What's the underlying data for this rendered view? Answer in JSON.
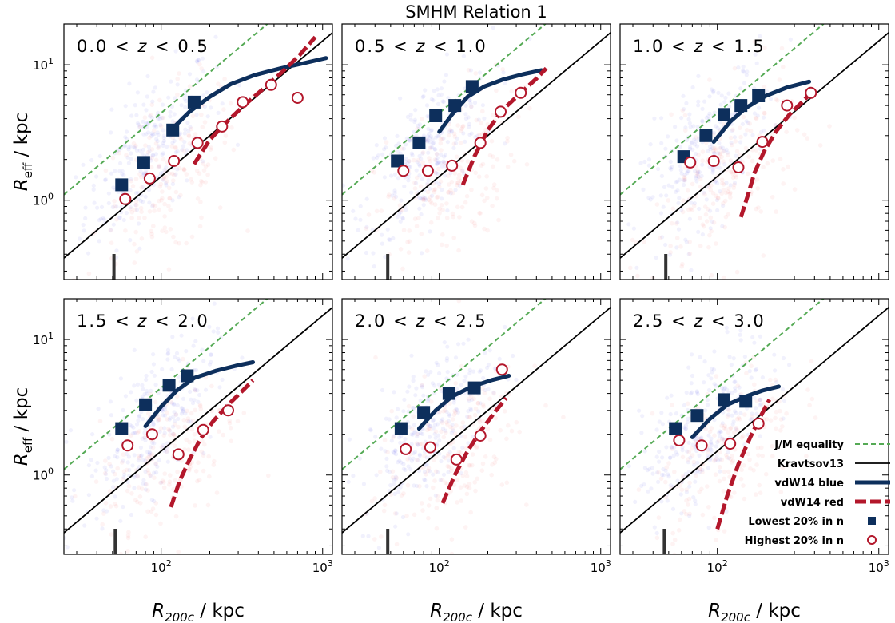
{
  "title": "SMHM Relation 1",
  "colors": {
    "jm_equality": "#55aa55",
    "kravtsov": "#000000",
    "vdw_blue": "#0d2f5c",
    "vdw_red": "#b3172b",
    "low_n": "#0d2f5c",
    "high_n": "#b3172b",
    "scatter_blue": "#3333dd",
    "scatter_red": "#ee5555",
    "tick_marker": "#333333"
  },
  "axes": {
    "xlabel_main": "R",
    "xlabel_sub": "200c",
    "xlabel_unit": " / kpc",
    "ylabel_main": "R",
    "ylabel_sub": "eff",
    "ylabel_unit": " / kpc",
    "xlim": [
      25,
      1150
    ],
    "ylim": [
      0.26,
      20
    ],
    "xscale": "log",
    "yscale": "log",
    "x_ticks": [
      {
        "value": 100,
        "base": "10",
        "exp": "2"
      },
      {
        "value": 1000,
        "base": "10",
        "exp": "3"
      }
    ],
    "y_ticks": [
      {
        "value": 1,
        "base": "10",
        "exp": "0"
      },
      {
        "value": 10,
        "base": "10",
        "exp": "1"
      }
    ]
  },
  "legend": {
    "placement": "lower-right of last panel",
    "entries": [
      {
        "label": "J/M equality",
        "key": "jm"
      },
      {
        "label": "Kravtsov13",
        "key": "krav"
      },
      {
        "label": "vdW14 blue",
        "key": "blue"
      },
      {
        "label": "vdW14 red",
        "key": "red"
      },
      {
        "label": "Lowest 20% in n",
        "key": "low"
      },
      {
        "label": "Highest 20% in n",
        "key": "high"
      }
    ]
  },
  "chart_data": [
    {
      "type": "scatter",
      "panel_label": "0.0 < z < 0.5",
      "lo": "0.0",
      "hi": "0.5",
      "jm_equality": {
        "x": [
          25,
          600
        ],
        "y": [
          1.1,
          26.4
        ]
      },
      "kravtsov13": {
        "x": [
          25,
          1150
        ],
        "y": [
          0.375,
          17.25
        ]
      },
      "vdw14_blue": {
        "x": [
          115,
          150,
          200,
          270,
          380,
          550,
          800,
          1050
        ],
        "y": [
          3.3,
          4.5,
          5.8,
          7.2,
          8.4,
          9.4,
          10.4,
          11.2
        ]
      },
      "vdw14_red": {
        "x": [
          160,
          200,
          250,
          320,
          420,
          560,
          720,
          900
        ],
        "y": [
          1.85,
          2.8,
          3.7,
          4.9,
          6.5,
          8.8,
          11.8,
          16
        ]
      },
      "lowest_20_n": {
        "x": [
          57,
          78,
          118,
          160
        ],
        "y": [
          1.3,
          1.9,
          3.3,
          5.3
        ]
      },
      "highest_20_n": {
        "x": [
          60,
          85,
          120,
          168,
          238,
          320,
          480,
          700
        ],
        "y": [
          1.02,
          1.45,
          1.95,
          2.65,
          3.5,
          5.3,
          7.1,
          5.7
        ]
      },
      "resolution_marker_x": 51
    },
    {
      "type": "scatter",
      "panel_label": "0.5 < z < 1.0",
      "lo": "0.5",
      "hi": "1.0",
      "jm_equality": {
        "x": [
          25,
          600
        ],
        "y": [
          1.1,
          26.4
        ]
      },
      "kravtsov13": {
        "x": [
          25,
          1150
        ],
        "y": [
          0.375,
          17.25
        ]
      },
      "vdw14_blue": {
        "x": [
          100,
          120,
          150,
          190,
          250,
          330,
          430
        ],
        "y": [
          3.2,
          4.3,
          5.8,
          6.9,
          7.8,
          8.5,
          9.1
        ]
      },
      "vdw14_red": {
        "x": [
          140,
          165,
          200,
          250,
          320,
          400,
          460
        ],
        "y": [
          1.3,
          2.1,
          3.3,
          4.7,
          6.2,
          7.9,
          9.4
        ]
      },
      "lowest_20_n": {
        "x": [
          55,
          75,
          95,
          125,
          160
        ],
        "y": [
          1.95,
          2.65,
          4.2,
          5.0,
          6.9
        ]
      },
      "highest_20_n": {
        "x": [
          60,
          85,
          120,
          180,
          240,
          320
        ],
        "y": [
          1.65,
          1.65,
          1.8,
          2.65,
          4.5,
          6.2
        ]
      },
      "resolution_marker_x": 48
    },
    {
      "type": "scatter",
      "panel_label": "1.0 < z < 1.5",
      "lo": "1.0",
      "hi": "1.5",
      "jm_equality": {
        "x": [
          25,
          600
        ],
        "y": [
          1.1,
          26.4
        ]
      },
      "kravtsov13": {
        "x": [
          25,
          1150
        ],
        "y": [
          0.375,
          17.25
        ]
      },
      "vdw14_blue": {
        "x": [
          95,
          120,
          150,
          200,
          270,
          370
        ],
        "y": [
          2.7,
          3.8,
          4.8,
          5.9,
          6.8,
          7.5
        ]
      },
      "vdw14_red": {
        "x": [
          140,
          155,
          170,
          195,
          230,
          280,
          340,
          380
        ],
        "y": [
          0.75,
          1.1,
          1.6,
          2.3,
          3.2,
          4.3,
          5.4,
          6.2
        ]
      },
      "lowest_20_n": {
        "x": [
          62,
          85,
          110,
          140,
          180
        ],
        "y": [
          2.1,
          3.0,
          4.3,
          5.0,
          5.9
        ]
      },
      "highest_20_n": {
        "x": [
          68,
          95,
          135,
          190,
          270,
          380
        ],
        "y": [
          1.9,
          1.95,
          1.75,
          2.7,
          5.0,
          6.2
        ]
      },
      "resolution_marker_x": 48
    },
    {
      "type": "scatter",
      "panel_label": "1.5 < z < 2.0",
      "lo": "1.5",
      "hi": "2.0",
      "jm_equality": {
        "x": [
          25,
          600
        ],
        "y": [
          1.1,
          26.4
        ]
      },
      "kravtsov13": {
        "x": [
          25,
          1150
        ],
        "y": [
          0.375,
          17.25
        ]
      },
      "vdw14_blue": {
        "x": [
          80,
          100,
          125,
          160,
          220,
          290,
          370
        ],
        "y": [
          2.3,
          3.2,
          4.2,
          5.2,
          5.9,
          6.4,
          6.8
        ]
      },
      "vdw14_red": {
        "x": [
          115,
          130,
          150,
          175,
          210,
          260,
          320,
          370
        ],
        "y": [
          0.58,
          0.9,
          1.3,
          1.85,
          2.5,
          3.3,
          4.2,
          5.0
        ]
      },
      "lowest_20_n": {
        "x": [
          57,
          80,
          112,
          145
        ],
        "y": [
          2.2,
          3.3,
          4.6,
          5.4
        ]
      },
      "highest_20_n": {
        "x": [
          62,
          88,
          128,
          182,
          260
        ],
        "y": [
          1.65,
          2.0,
          1.42,
          2.15,
          3.0
        ]
      },
      "resolution_marker_x": 52
    },
    {
      "type": "scatter",
      "panel_label": "2.0 < z < 2.5",
      "lo": "2.0",
      "hi": "2.5",
      "jm_equality": {
        "x": [
          25,
          600
        ],
        "y": [
          1.1,
          26.4
        ]
      },
      "kravtsov13": {
        "x": [
          25,
          1150
        ],
        "y": [
          0.375,
          17.25
        ]
      },
      "vdw14_blue": {
        "x": [
          75,
          95,
          120,
          160,
          210,
          270
        ],
        "y": [
          2.2,
          3.0,
          3.8,
          4.5,
          5.0,
          5.4
        ]
      },
      "vdw14_red": {
        "x": [
          105,
          125,
          150,
          180,
          220,
          260
        ],
        "y": [
          0.62,
          1.0,
          1.5,
          2.1,
          2.9,
          3.7
        ]
      },
      "lowest_20_n": {
        "x": [
          58,
          80,
          115,
          165
        ],
        "y": [
          2.2,
          2.9,
          4.0,
          4.4
        ]
      },
      "highest_20_n": {
        "x": [
          62,
          88,
          128,
          180,
          245
        ],
        "y": [
          1.55,
          1.6,
          1.3,
          1.95,
          6.0
        ]
      },
      "resolution_marker_x": 48
    },
    {
      "type": "scatter",
      "panel_label": "2.5 < z < 3.0",
      "lo": "2.5",
      "hi": "3.0",
      "jm_equality": {
        "x": [
          25,
          600
        ],
        "y": [
          1.1,
          26.4
        ]
      },
      "kravtsov13": {
        "x": [
          25,
          1150
        ],
        "y": [
          0.375,
          17.25
        ]
      },
      "vdw14_blue": {
        "x": [
          70,
          90,
          115,
          150,
          190,
          240
        ],
        "y": [
          1.9,
          2.6,
          3.3,
          3.8,
          4.2,
          4.5
        ]
      },
      "vdw14_red": {
        "x": [
          100,
          115,
          135,
          160,
          185,
          210
        ],
        "y": [
          0.4,
          0.7,
          1.2,
          1.9,
          2.7,
          3.6
        ]
      },
      "lowest_20_n": {
        "x": [
          55,
          75,
          110,
          150
        ],
        "y": [
          2.2,
          2.75,
          3.6,
          3.5
        ]
      },
      "highest_20_n": {
        "x": [
          58,
          80,
          120,
          180
        ],
        "y": [
          1.8,
          1.65,
          1.7,
          2.4
        ]
      },
      "resolution_marker_x": 47
    }
  ]
}
